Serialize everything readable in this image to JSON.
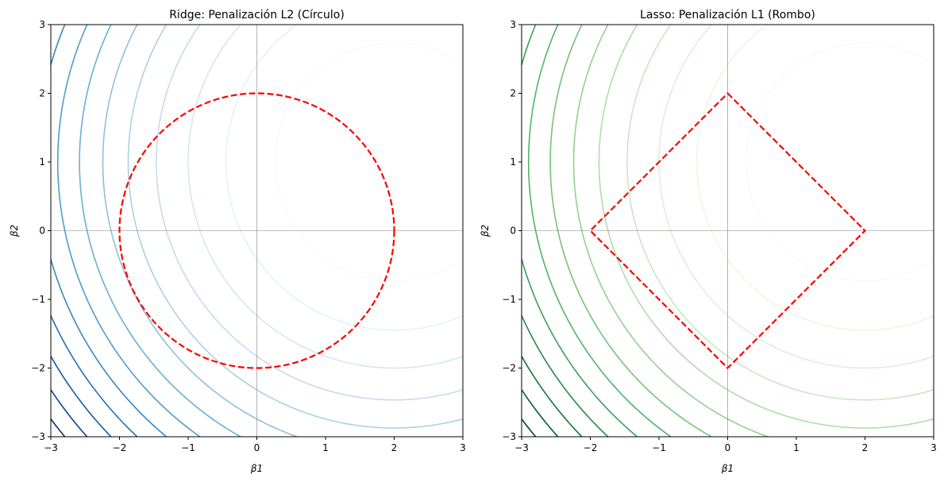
{
  "chart_data": [
    {
      "type": "contour",
      "title": "Ridge: Penalización L2 (Círculo)",
      "xlabel": "β1",
      "ylabel": "β2",
      "xlim": [
        -3,
        3
      ],
      "ylim": [
        -3,
        3
      ],
      "xticks": [
        "−3",
        "−2",
        "−1",
        "0",
        "1",
        "2",
        "3"
      ],
      "yticks": [
        "−3",
        "−2",
        "−1",
        "0",
        "1",
        "2",
        "3"
      ],
      "contour_center": [
        2,
        1
      ],
      "function": "(β1-2)^2 + (β2-1)^2",
      "levels": [
        3,
        6,
        9,
        12,
        15,
        18,
        21,
        24,
        27,
        30,
        33,
        36,
        39
      ],
      "colormap": "Blues",
      "constraint": {
        "shape": "circle",
        "norm": "L2",
        "radius": 2,
        "color": "#ff0000",
        "style": "dashed"
      },
      "reference_lines": {
        "x": 0,
        "y": 0,
        "color": "#808080"
      }
    },
    {
      "type": "contour",
      "title": "Lasso: Penalización L1 (Rombo)",
      "xlabel": "β1",
      "ylabel": "β2",
      "xlim": [
        -3,
        3
      ],
      "ylim": [
        -3,
        3
      ],
      "xticks": [
        "−3",
        "−2",
        "−1",
        "0",
        "1",
        "2",
        "3"
      ],
      "yticks": [
        "−3",
        "−2",
        "−1",
        "0",
        "1",
        "2",
        "3"
      ],
      "contour_center": [
        2,
        1
      ],
      "function": "(β1-2)^2 + (β2-1)^2",
      "levels": [
        3,
        6,
        9,
        12,
        15,
        18,
        21,
        24,
        27,
        30,
        33,
        36,
        39
      ],
      "colormap": "Greens",
      "constraint": {
        "shape": "diamond",
        "norm": "L1",
        "radius": 2,
        "color": "#ff0000",
        "style": "dashed"
      },
      "reference_lines": {
        "x": 0,
        "y": 0,
        "color": "#808080"
      }
    }
  ],
  "colormaps": {
    "Blues": [
      "#f7fbff",
      "#deebf7",
      "#c6dbef",
      "#9ecae1",
      "#6baed6",
      "#4292c6",
      "#2171b5",
      "#08519c",
      "#08306b"
    ],
    "Greens": [
      "#f7fcf5",
      "#e5f5e0",
      "#c7e9c0",
      "#a1d99b",
      "#74c476",
      "#41ab5d",
      "#238b45",
      "#006d2c",
      "#00441b"
    ]
  }
}
